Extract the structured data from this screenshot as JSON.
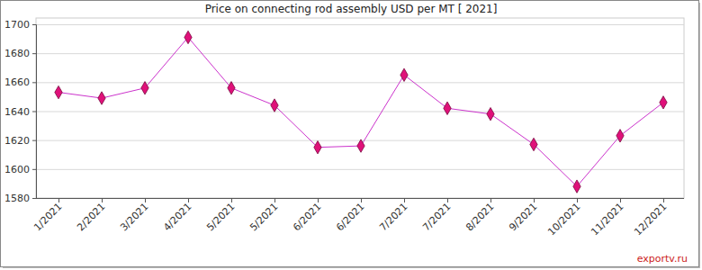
{
  "chart_data": {
    "type": "line",
    "title": "Price on connecting rod assembly USD per MT [ 2021]",
    "categories": [
      "1/2021",
      "2/2021",
      "3/2021",
      "4/2021",
      "5/2021",
      "5/2021",
      "6/2021",
      "6/2021",
      "7/2021",
      "7/2021",
      "8/2021",
      "9/2021",
      "10/2021",
      "11/2021",
      "12/2021"
    ],
    "values": [
      1653,
      1649,
      1656,
      1691,
      1656,
      1644,
      1615,
      1616,
      1665,
      1642,
      1638,
      1617,
      1588,
      1623,
      1646
    ],
    "color": "#cc33cc",
    "marker": "diamond",
    "ylim": [
      1580,
      1700
    ],
    "yticks": [
      1580,
      1600,
      1620,
      1640,
      1660,
      1680,
      1700
    ],
    "grid": true,
    "annotations": [
      "exportv.ru"
    ]
  }
}
